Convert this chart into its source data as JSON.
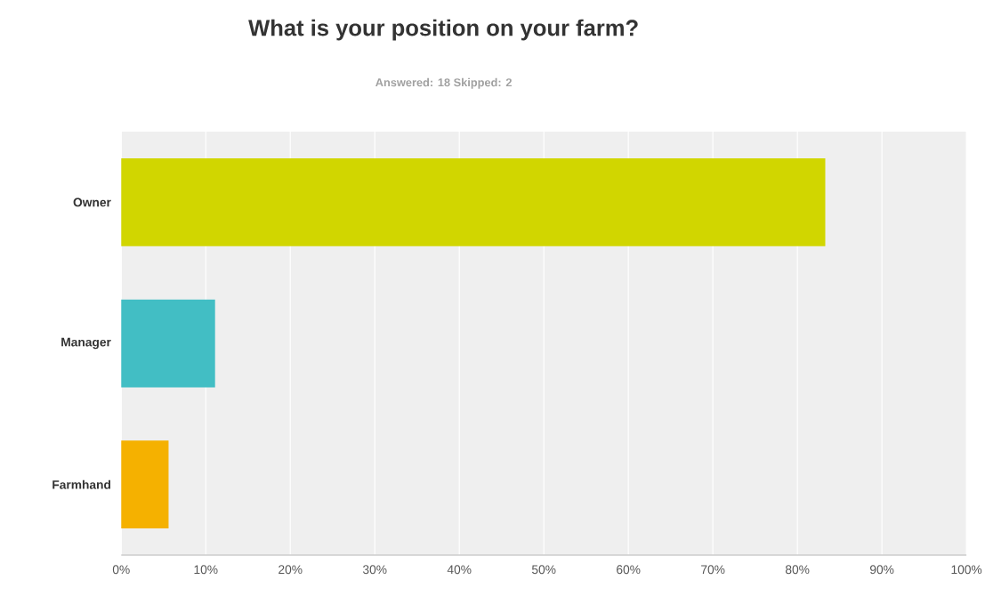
{
  "chart_data": {
    "type": "bar",
    "orientation": "horizontal",
    "title": "What is your position on your farm?",
    "subtitle": "Answered: 18    Skipped: 2",
    "categories": [
      "Owner",
      "Manager",
      "Farmhand"
    ],
    "values": [
      83.3,
      11.1,
      5.6
    ],
    "colors": [
      "#d1d600",
      "#42bec4",
      "#f5b100"
    ],
    "xlim": [
      0,
      100
    ],
    "xticks": [
      {
        "value": 0,
        "label": "0%"
      },
      {
        "value": 10,
        "label": "10%"
      },
      {
        "value": 20,
        "label": "20%"
      },
      {
        "value": 30,
        "label": "30%"
      },
      {
        "value": 40,
        "label": "40%"
      },
      {
        "value": 50,
        "label": "50%"
      },
      {
        "value": 60,
        "label": "60%"
      },
      {
        "value": 70,
        "label": "70%"
      },
      {
        "value": 80,
        "label": "80%"
      },
      {
        "value": 90,
        "label": "90%"
      },
      {
        "value": 100,
        "label": "100%"
      }
    ],
    "grid": "x"
  }
}
